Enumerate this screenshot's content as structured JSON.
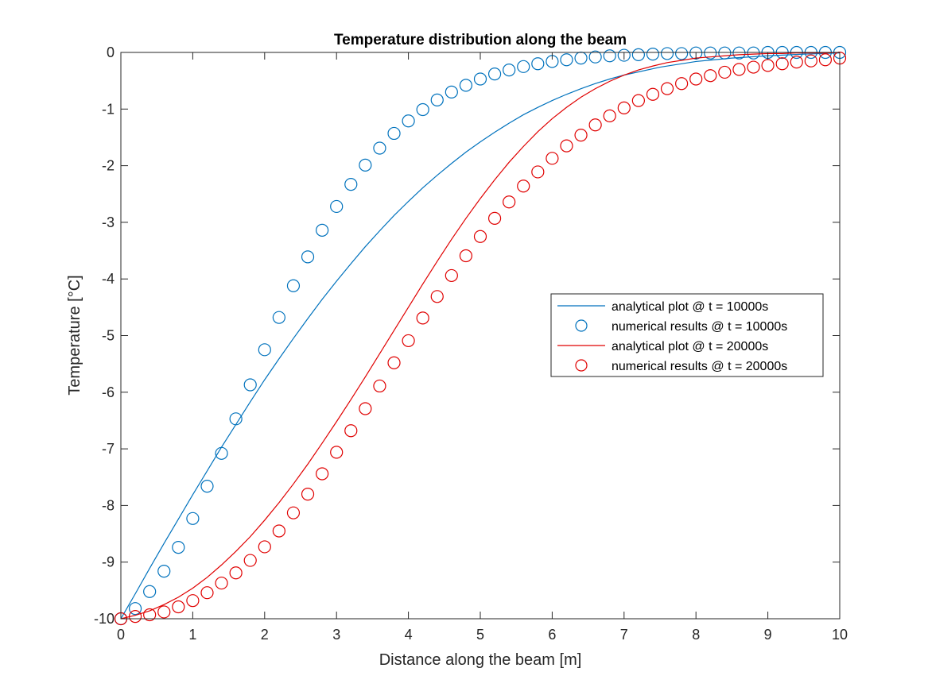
{
  "chart_data": {
    "type": "line",
    "title": "Temperature distribution along the beam",
    "xlabel": "Distance along the beam [m]",
    "ylabel": "Temperature [°C]",
    "xlim": [
      0,
      10
    ],
    "ylim": [
      -10,
      0
    ],
    "xticks": [
      0,
      1,
      2,
      3,
      4,
      5,
      6,
      7,
      8,
      9,
      10
    ],
    "yticks": [
      0,
      -1,
      -2,
      -3,
      -4,
      -5,
      -6,
      -7,
      -8,
      -9,
      -10
    ],
    "grid": false,
    "legend_position": "right",
    "series": [
      {
        "name": "analytical plot @ t = 10000s",
        "kind": "line",
        "color": "#0072BD",
        "x": [
          0,
          0.2,
          0.4,
          0.6,
          0.8,
          1.0,
          1.2,
          1.4,
          1.6,
          1.8,
          2.0,
          2.2,
          2.4,
          2.6,
          2.8,
          3.0,
          3.2,
          3.4,
          3.6,
          3.8,
          4.0,
          4.2,
          4.4,
          4.6,
          4.8,
          5.0,
          5.2,
          5.4,
          5.6,
          5.8,
          6.0,
          6.2,
          6.4,
          6.6,
          6.8,
          7.0,
          7.5,
          8.0,
          8.5,
          9.0,
          9.5,
          10.0
        ],
        "y": [
          -10,
          -9.56,
          -9.11,
          -8.67,
          -8.24,
          -7.81,
          -7.39,
          -6.97,
          -6.57,
          -6.17,
          -5.78,
          -5.41,
          -5.05,
          -4.7,
          -4.36,
          -4.04,
          -3.73,
          -3.43,
          -3.15,
          -2.88,
          -2.63,
          -2.39,
          -2.17,
          -1.96,
          -1.76,
          -1.58,
          -1.41,
          -1.25,
          -1.1,
          -0.97,
          -0.85,
          -0.74,
          -0.64,
          -0.55,
          -0.47,
          -0.4,
          -0.26,
          -0.16,
          -0.1,
          -0.06,
          -0.03,
          -0.01
        ]
      },
      {
        "name": "numerical results @ t = 10000s",
        "kind": "markers",
        "color": "#0072BD",
        "x": [
          0,
          0.2,
          0.4,
          0.6,
          0.8,
          1.0,
          1.2,
          1.4,
          1.6,
          1.8,
          2.0,
          2.2,
          2.4,
          2.6,
          2.8,
          3.0,
          3.2,
          3.4,
          3.6,
          3.8,
          4.0,
          4.2,
          4.4,
          4.6,
          4.8,
          5.0,
          5.2,
          5.4,
          5.6,
          5.8,
          6.0,
          6.2,
          6.4,
          6.6,
          6.8,
          7.0,
          7.2,
          7.4,
          7.6,
          7.8,
          8.0,
          8.2,
          8.4,
          8.6,
          8.8,
          9.0,
          9.2,
          9.4,
          9.6,
          9.8,
          10.0
        ],
        "y": [
          -10,
          -9.82,
          -9.52,
          -9.16,
          -8.74,
          -8.23,
          -7.66,
          -7.08,
          -6.47,
          -5.87,
          -5.25,
          -4.68,
          -4.12,
          -3.61,
          -3.14,
          -2.72,
          -2.33,
          -1.99,
          -1.69,
          -1.43,
          -1.21,
          -1.01,
          -0.84,
          -0.7,
          -0.58,
          -0.47,
          -0.38,
          -0.31,
          -0.25,
          -0.2,
          -0.16,
          -0.13,
          -0.1,
          -0.08,
          -0.06,
          -0.05,
          -0.04,
          -0.03,
          -0.02,
          -0.02,
          -0.01,
          -0.01,
          -0.01,
          -0.01,
          -0.01,
          0,
          0,
          0,
          0,
          0,
          0
        ]
      },
      {
        "name": "analytical plot @ t = 20000s",
        "kind": "line",
        "color": "#E00000",
        "x": [
          0,
          0.2,
          0.4,
          0.6,
          0.8,
          1.0,
          1.2,
          1.4,
          1.6,
          1.8,
          2.0,
          2.2,
          2.4,
          2.6,
          2.8,
          3.0,
          3.2,
          3.4,
          3.6,
          3.8,
          4.0,
          4.2,
          4.4,
          4.6,
          4.8,
          5.0,
          5.2,
          5.4,
          5.6,
          5.8,
          6.0,
          6.2,
          6.4,
          6.6,
          6.8,
          7.0,
          7.2,
          7.4,
          7.6,
          7.8,
          8.0,
          8.2,
          8.4,
          8.6,
          8.8,
          9.0,
          9.2,
          9.4,
          9.6,
          9.8,
          10.0
        ],
        "y": [
          -10,
          -9.94,
          -9.86,
          -9.75,
          -9.62,
          -9.46,
          -9.27,
          -9.05,
          -8.81,
          -8.55,
          -8.26,
          -7.95,
          -7.62,
          -7.27,
          -6.9,
          -6.52,
          -6.13,
          -5.73,
          -5.32,
          -4.91,
          -4.5,
          -4.09,
          -3.69,
          -3.3,
          -2.93,
          -2.58,
          -2.25,
          -1.94,
          -1.66,
          -1.4,
          -1.17,
          -0.97,
          -0.79,
          -0.64,
          -0.51,
          -0.4,
          -0.31,
          -0.24,
          -0.18,
          -0.14,
          -0.1,
          -0.08,
          -0.06,
          -0.04,
          -0.03,
          -0.02,
          -0.02,
          -0.01,
          -0.01,
          -0.01,
          0
        ]
      },
      {
        "name": "numerical results @ t = 20000s",
        "kind": "markers",
        "color": "#E00000",
        "x": [
          0,
          0.2,
          0.4,
          0.6,
          0.8,
          1.0,
          1.2,
          1.4,
          1.6,
          1.8,
          2.0,
          2.2,
          2.4,
          2.6,
          2.8,
          3.0,
          3.2,
          3.4,
          3.6,
          3.8,
          4.0,
          4.2,
          4.4,
          4.6,
          4.8,
          5.0,
          5.2,
          5.4,
          5.6,
          5.8,
          6.0,
          6.2,
          6.4,
          6.6,
          6.8,
          7.0,
          7.2,
          7.4,
          7.6,
          7.8,
          8.0,
          8.2,
          8.4,
          8.6,
          8.8,
          9.0,
          9.2,
          9.4,
          9.6,
          9.8,
          10.0
        ],
        "y": [
          -10,
          -9.96,
          -9.93,
          -9.88,
          -9.79,
          -9.68,
          -9.54,
          -9.37,
          -9.19,
          -8.97,
          -8.73,
          -8.45,
          -8.13,
          -7.8,
          -7.44,
          -7.06,
          -6.68,
          -6.29,
          -5.89,
          -5.48,
          -5.09,
          -4.69,
          -4.31,
          -3.94,
          -3.59,
          -3.25,
          -2.93,
          -2.64,
          -2.36,
          -2.11,
          -1.87,
          -1.65,
          -1.46,
          -1.28,
          -1.12,
          -0.98,
          -0.85,
          -0.74,
          -0.64,
          -0.55,
          -0.47,
          -0.41,
          -0.35,
          -0.3,
          -0.26,
          -0.23,
          -0.2,
          -0.17,
          -0.15,
          -0.13,
          -0.1
        ]
      }
    ]
  }
}
